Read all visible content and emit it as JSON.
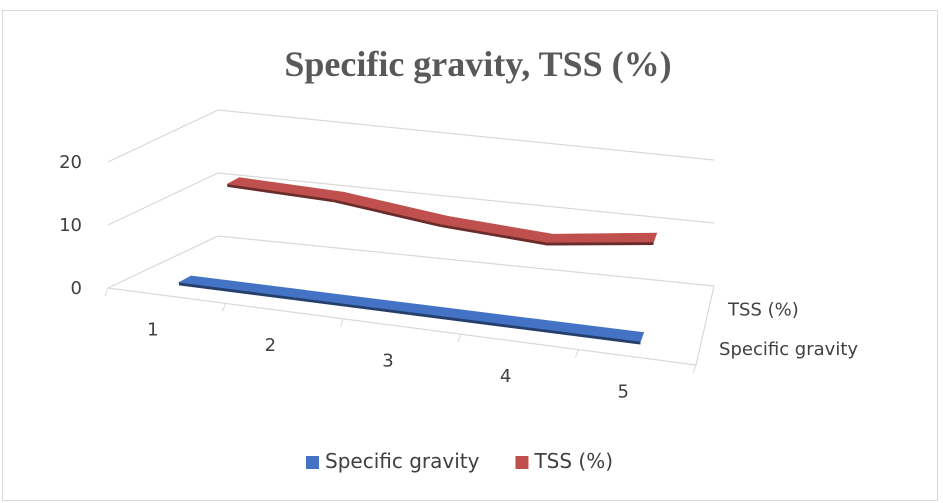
{
  "chart_data": {
    "type": "line",
    "style": "3d-ribbon",
    "title": "Specific gravity, TSS (%)",
    "xlabel": "",
    "ylabel": "",
    "categories": [
      "1",
      "2",
      "3",
      "4",
      "5"
    ],
    "ylim": [
      0,
      20
    ],
    "yticks": [
      "0",
      "10",
      "20"
    ],
    "grid": true,
    "legend_position": "bottom",
    "series": [
      {
        "name": "Specific gravity",
        "color": "#4472c4",
        "values": [
          1.05,
          1.04,
          1.03,
          1.02,
          1.02
        ]
      },
      {
        "name": "TSS (%)",
        "color": "#c0504d",
        "values": [
          12.5,
          12.0,
          10.0,
          9.0,
          11.0
        ]
      }
    ],
    "depth_labels": [
      "TSS (%)",
      "Specific gravity"
    ]
  }
}
